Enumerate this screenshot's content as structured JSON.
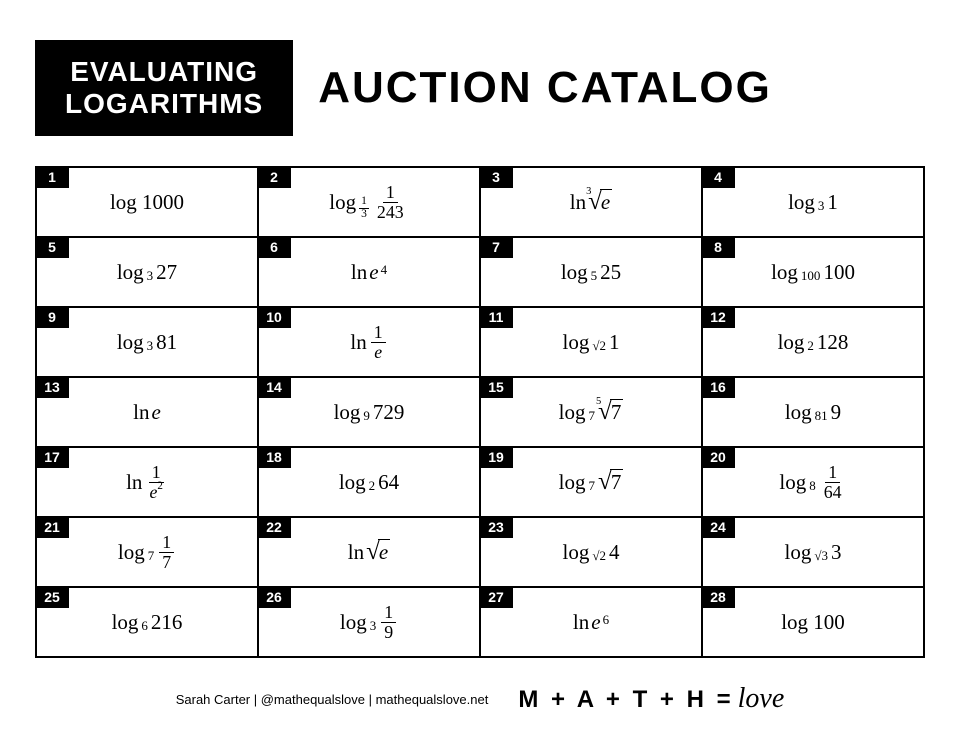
{
  "header": {
    "title_line1": "EVALUATING",
    "title_line2": "LOGARITHMS",
    "catalog": "AUCTION CATALOG"
  },
  "cells": [
    {
      "n": "1",
      "html": "log 1000"
    },
    {
      "n": "2",
      "html": "log<span class='subfrac'><span class='nu'>1</span><span class='de'>3</span></span> <span class='frac'><span class='nu'>1</span><span class='de'>243</span></span>"
    },
    {
      "n": "3",
      "html": "ln <span class='radical'><span class='rootindex'>3</span><span class='radix'>√</span><span class='radicand italic'>e</span></span>"
    },
    {
      "n": "4",
      "html": "log<span class='subsc'>3</span> 1"
    },
    {
      "n": "5",
      "html": "log<span class='subsc'>3</span> 27"
    },
    {
      "n": "6",
      "html": "ln <span class='italic'>e</span><span class='supsc'>4</span>"
    },
    {
      "n": "7",
      "html": "log<span class='subsc'>5</span> 25"
    },
    {
      "n": "8",
      "html": "log<span class='subsc'>100</span> 100"
    },
    {
      "n": "9",
      "html": "log<span class='subsc'>3</span> 81"
    },
    {
      "n": "10",
      "html": "ln <span class='frac'><span class='nu'>1</span><span class='de italic'>e</span></span>"
    },
    {
      "n": "11",
      "html": "log<span class='subsc'>√2</span> 1"
    },
    {
      "n": "12",
      "html": "log<span class='subsc'>2</span> 128"
    },
    {
      "n": "13",
      "html": "ln <span class='italic'>e</span>"
    },
    {
      "n": "14",
      "html": "log<span class='subsc'>9</span> 729"
    },
    {
      "n": "15",
      "html": "log<span class='subsc'>7</span> <span class='radical'><span class='rootindex'>5</span><span class='radix'>√</span><span class='radicand'>7</span></span>"
    },
    {
      "n": "16",
      "html": "log<span class='subsc'>81</span> 9"
    },
    {
      "n": "17",
      "html": "ln <span class='frac'><span class='nu'>1</span><span class='de'><span class='italic'>e</span><span class='supsc'>2</span></span></span>"
    },
    {
      "n": "18",
      "html": "log<span class='subsc'>2</span> 64"
    },
    {
      "n": "19",
      "html": "log<span class='subsc'>7</span> <span class='radical'><span class='radix'>√</span><span class='radicand'>7</span></span>"
    },
    {
      "n": "20",
      "html": "log<span class='subsc'>8</span> <span class='frac'><span class='nu'>1</span><span class='de'>64</span></span>"
    },
    {
      "n": "21",
      "html": "log<span class='subsc'>7</span> <span class='frac'><span class='nu'>1</span><span class='de'>7</span></span>"
    },
    {
      "n": "22",
      "html": "ln <span class='radical'><span class='radix'>√</span><span class='radicand italic'>e</span></span>"
    },
    {
      "n": "23",
      "html": "log<span class='subsc'>√2</span> 4"
    },
    {
      "n": "24",
      "html": "log<span class='subsc'>√3</span> 3"
    },
    {
      "n": "25",
      "html": "log<span class='subsc'>6</span> 216"
    },
    {
      "n": "26",
      "html": "log<span class='subsc'>3</span> <span class='frac'><span class='nu'>1</span><span class='de'>9</span></span>"
    },
    {
      "n": "27",
      "html": "ln <span class='italic'>e</span><span class='supsc'>6</span>"
    },
    {
      "n": "28",
      "html": "log 100"
    }
  ],
  "footer": {
    "credit": "Sarah Carter | @mathequalslove | mathequalslove.net",
    "brand_letters": "M + A + T + H =",
    "brand_love": "love"
  },
  "colors": {
    "bg": "#ffffff",
    "fg": "#000000"
  }
}
